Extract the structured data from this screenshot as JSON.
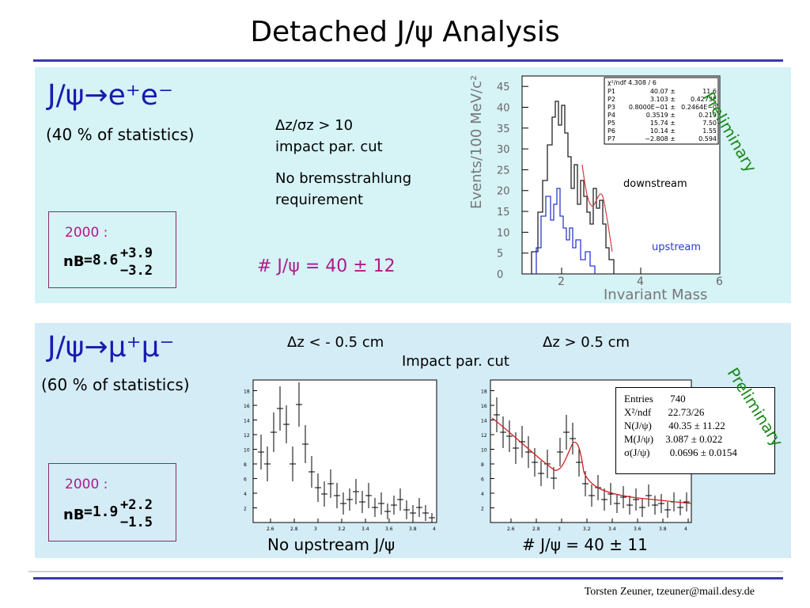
{
  "title": "Detached J/ψ Analysis",
  "panel_ee": {
    "heading": "J/ψ→e⁺e⁻",
    "stat_fraction": "(40 % of statistics)",
    "cut_line1": "Δz/σz > 10",
    "cut_line2": "impact par. cut",
    "brems_line1": "No bremsstrahlung",
    "brems_line2": "requirement",
    "nb_year": "2000 :",
    "nb_label": "nB",
    "nb_value": "=8.6",
    "nb_plus": "+3.9",
    "nb_minus": "−3.2",
    "count": "# J/ψ = 40 ± 12",
    "preliminary": "Preliminary",
    "plot": {
      "ylabel": "Events/100 MeV/c²",
      "xlabel": "Invariant Mass",
      "label_downstream": "downstream",
      "label_upstream": "upstream",
      "yticks": [
        "0",
        "5",
        "10",
        "15",
        "20",
        "25",
        "30",
        "35",
        "40",
        "45"
      ],
      "xticks": [
        "2",
        "4",
        "6"
      ],
      "fit_header": "χ²/ndf 4.308  /  6",
      "fit_rows": [
        [
          "P1",
          "40.07 ±",
          "11.6"
        ],
        [
          "P2",
          "3.103 ±",
          "0.4273E"
        ],
        [
          "P3",
          "0.8000E−01 ±",
          "0.2464E−0"
        ],
        [
          "P4",
          "0.3519 ±",
          "0.219"
        ],
        [
          "P5",
          "15.74 ±",
          "7.50"
        ],
        [
          "P6",
          "10.14 ±",
          "1.55"
        ],
        [
          "P7",
          "−2.808 ±",
          "0.594"
        ]
      ]
    }
  },
  "panel_mumu": {
    "heading": "J/ψ→μ⁺μ⁻",
    "stat_fraction": "(60 % of statistics)",
    "dz_left": "Δz < - 0.5 cm",
    "dz_right": "Δz > 0.5 cm",
    "impact": "Impact par. cut",
    "nb_year": "2000 :",
    "nb_label": "nB",
    "nb_value": "=1.9",
    "nb_plus": "+2.2",
    "nb_minus": "−1.5",
    "left_caption": "No upstream J/ψ",
    "right_caption": "# J/ψ = 40 ± 11",
    "preliminary": "Preliminary",
    "left_xticks": [
      "2.6",
      "2.8",
      "3",
      "3.2",
      "3.4",
      "3.6",
      "3.8",
      "4"
    ],
    "left_yticks": [
      "2",
      "4",
      "6",
      "8",
      "10",
      "12",
      "14",
      "16",
      "18"
    ],
    "right_xticks": [
      "2.6",
      "2.8",
      "3",
      "3.2",
      "3.4",
      "3.6",
      "3.8",
      "4"
    ],
    "right_yticks": [
      "2",
      "4",
      "6",
      "8",
      "10",
      "12",
      "14",
      "16",
      "18"
    ],
    "stats": {
      "entries_label": "Entries",
      "entries_value": "740",
      "chi_label": "X²/ndf",
      "chi_value": "22.73/26",
      "n_label": "N(J/ψ)",
      "n_value": "40.35 ± 11.22",
      "m_label": "M(J/ψ)",
      "m_value": "3.087 ± 0.022",
      "s_label": "σ(J/ψ)",
      "s_value": "0.0696 ± 0.0154"
    }
  },
  "footer": "Torsten Zeuner, tzeuner@mail.desy.de",
  "colors": {
    "heading": "#1a1ab0",
    "preliminary": "#1a8a1a",
    "count": "#b01a8a",
    "rule": "#3a3aa8"
  }
}
